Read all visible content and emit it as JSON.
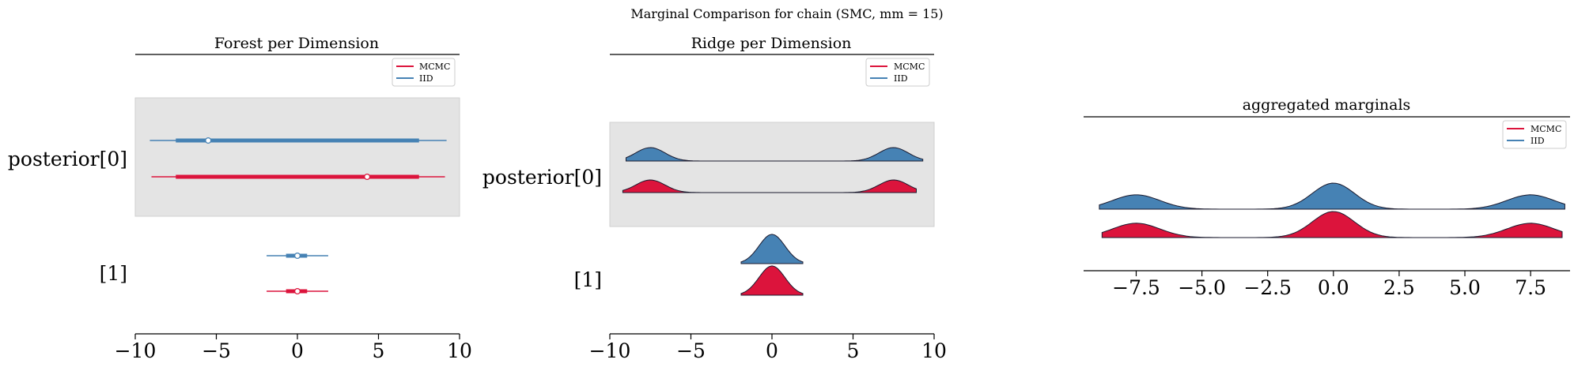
{
  "figure": {
    "suptitle": "Marginal Comparison for chain (SMC, mm = 15)",
    "colors": {
      "MCMC": "#dc143c",
      "IID": "#4682b4",
      "band": "#e4e4e4",
      "band_edge": "#cfcfcf"
    }
  },
  "chart_data": [
    {
      "type": "forest",
      "title": "Forest per Dimension",
      "legend": [
        "MCMC",
        "IID"
      ],
      "legend_position": "top-right",
      "xlim": [
        -10,
        10
      ],
      "xticks": [
        -10,
        -5,
        0,
        5,
        10
      ],
      "xtick_labels": [
        "−10",
        "−5",
        "0",
        "5",
        "10"
      ],
      "ylabels": [
        "posterior[0]",
        "[1]"
      ],
      "shaded_rows": [
        0
      ],
      "rows": [
        {
          "label": "posterior[0]",
          "IID": {
            "hdi": [
              -9.1,
              9.2
            ],
            "iqr": [
              -7.5,
              7.5
            ],
            "point": -5.5
          },
          "MCMC": {
            "hdi": [
              -9.0,
              9.1
            ],
            "iqr": [
              -7.5,
              7.5
            ],
            "point": 4.3
          }
        },
        {
          "label": "[1]",
          "IID": {
            "hdi": [
              -1.9,
              1.9
            ],
            "iqr": [
              -0.7,
              0.6
            ],
            "point": 0.0
          },
          "MCMC": {
            "hdi": [
              -1.9,
              1.9
            ],
            "iqr": [
              -0.7,
              0.6
            ],
            "point": 0.0
          }
        }
      ]
    },
    {
      "type": "ridge",
      "title": "Ridge per Dimension",
      "legend": [
        "MCMC",
        "IID"
      ],
      "legend_position": "top-right",
      "xlim": [
        -10,
        10
      ],
      "xticks": [
        -10,
        -5,
        0,
        5,
        10
      ],
      "xtick_labels": [
        "−10",
        "−5",
        "0",
        "5",
        "10"
      ],
      "ylabels": [
        "posterior[0]",
        "[1]"
      ],
      "shaded_rows": [
        0
      ],
      "rows": [
        {
          "label": "posterior[0]",
          "IID": {
            "modes": [
              [
                -7.5,
                1.0,
                0.9
              ],
              [
                7.5,
                1.0,
                0.9
              ]
            ],
            "range": [
              -9.0,
              9.3
            ]
          },
          "MCMC": {
            "modes": [
              [
                -7.5,
                1.0,
                0.9
              ],
              [
                7.5,
                1.0,
                0.9
              ]
            ],
            "range": [
              -9.2,
              8.9
            ]
          }
        },
        {
          "label": "[1]",
          "IID": {
            "modes": [
              [
                0,
                1.0,
                0.8
              ]
            ],
            "range": [
              -1.9,
              1.9
            ]
          },
          "MCMC": {
            "modes": [
              [
                0,
                1.0,
                0.8
              ]
            ],
            "range": [
              -1.9,
              1.9
            ]
          }
        }
      ]
    },
    {
      "type": "area",
      "title": "aggregated marginals",
      "legend": [
        "MCMC",
        "IID"
      ],
      "legend_position": "top-right",
      "xlim": [
        -9.5,
        9.0
      ],
      "xticks": [
        -7.5,
        -5.0,
        -2.5,
        0.0,
        2.5,
        5.0,
        7.5
      ],
      "xtick_labels": [
        "−7.5",
        "−5.0",
        "−2.5",
        "0.0",
        "2.5",
        "5.0",
        "7.5"
      ],
      "series": [
        {
          "name": "IID",
          "modes": [
            [
              -7.5,
              0.55,
              0.9
            ],
            [
              0,
              1.0,
              0.8
            ],
            [
              7.5,
              0.55,
              0.9
            ]
          ],
          "range": [
            -8.9,
            8.8
          ]
        },
        {
          "name": "MCMC",
          "modes": [
            [
              -7.5,
              0.55,
              0.9
            ],
            [
              0,
              1.0,
              0.8
            ],
            [
              7.5,
              0.55,
              0.9
            ]
          ],
          "range": [
            -8.8,
            8.7
          ]
        }
      ]
    }
  ]
}
